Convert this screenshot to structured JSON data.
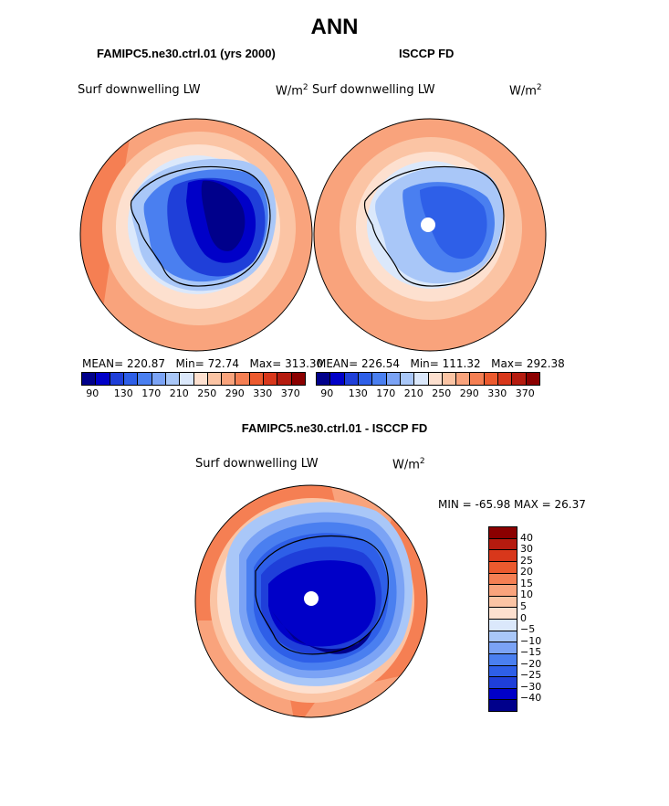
{
  "figure": {
    "title": "ANN",
    "panel_left": {
      "case": "FAMIPC5.ne30.ctrl.01 (yrs 2000)",
      "field": "Surf downwelling LW",
      "units": "W/m",
      "units_sup": "2",
      "stats": {
        "mean_label": "MEAN=",
        "mean": "220.87",
        "min_label": "Min=",
        "min": "72.74",
        "max_label": "Max=",
        "max": "313.30"
      }
    },
    "panel_right": {
      "case": "ISCCP FD",
      "field": "Surf downwelling LW",
      "units": "W/m",
      "units_sup": "2",
      "stats": {
        "mean_label": "MEAN=",
        "mean": "226.54",
        "min_label": "Min=",
        "min": "111.32",
        "max_label": "Max=",
        "max": "292.38"
      }
    },
    "panel_diff": {
      "case": "FAMIPC5.ne30.ctrl.01 - ISCCP FD",
      "field": "Surf downwelling LW",
      "units": "W/m",
      "units_sup": "2",
      "minmax_text": "MIN = -65.98  MAX =  26.37"
    }
  },
  "chart_data": [
    {
      "type": "heatmap",
      "projection": "south-polar-stereographic",
      "title": "FAMIPC5.ne30.ctrl.01 (yrs 2000)",
      "field": "Surf downwelling LW (W/m2)",
      "mean": 220.87,
      "min": 72.74,
      "max": 313.3,
      "colorbar_levels": [
        90,
        110,
        130,
        150,
        170,
        190,
        210,
        230,
        250,
        270,
        290,
        310,
        330,
        350,
        370
      ],
      "colorbar_tick_labels": [
        "90",
        "130",
        "170",
        "210",
        "250",
        "290",
        "330",
        "370"
      ],
      "colors": [
        "#00008b",
        "#0000c8",
        "#1f3fd9",
        "#2e5fe8",
        "#4a7ff0",
        "#7ba3f5",
        "#a9c7f8",
        "#dbe8fb",
        "#fde0cf",
        "#fbc4a4",
        "#f9a37c",
        "#f57f53",
        "#ec5a2e",
        "#d8371b",
        "#b51b0f",
        "#8b0000"
      ]
    },
    {
      "type": "heatmap",
      "projection": "south-polar-stereographic",
      "title": "ISCCP FD",
      "field": "Surf downwelling LW (W/m2)",
      "mean": 226.54,
      "min": 111.32,
      "max": 292.38,
      "colorbar_levels": [
        90,
        110,
        130,
        150,
        170,
        190,
        210,
        230,
        250,
        270,
        290,
        310,
        330,
        350,
        370
      ],
      "colorbar_tick_labels": [
        "90",
        "130",
        "170",
        "210",
        "250",
        "290",
        "330",
        "370"
      ],
      "colors": [
        "#00008b",
        "#0000c8",
        "#1f3fd9",
        "#2e5fe8",
        "#4a7ff0",
        "#7ba3f5",
        "#a9c7f8",
        "#dbe8fb",
        "#fde0cf",
        "#fbc4a4",
        "#f9a37c",
        "#f57f53",
        "#ec5a2e",
        "#d8371b",
        "#b51b0f",
        "#8b0000"
      ]
    },
    {
      "type": "heatmap",
      "projection": "south-polar-stereographic",
      "title": "FAMIPC5.ne30.ctrl.01 - ISCCP FD",
      "field": "Surf downwelling LW (W/m2)",
      "min": -65.98,
      "max": 26.37,
      "colorbar_levels": [
        40,
        30,
        25,
        20,
        15,
        10,
        5,
        0,
        -5,
        -10,
        -15,
        -20,
        -25,
        -30,
        -40
      ],
      "colorbar_tick_labels": [
        "40",
        "30",
        "25",
        "20",
        "15",
        "10",
        "5",
        "0",
        "−5",
        "−10",
        "−15",
        "−20",
        "−25",
        "−30",
        "−40"
      ],
      "colors": [
        "#8b0000",
        "#b51b0f",
        "#d8371b",
        "#ec5a2e",
        "#f57f53",
        "#f9a37c",
        "#fbc4a4",
        "#fde0cf",
        "#dbe8fb",
        "#a9c7f8",
        "#7ba3f5",
        "#4a7ff0",
        "#2e5fe8",
        "#1f3fd9",
        "#0000c8",
        "#00008b"
      ]
    }
  ]
}
